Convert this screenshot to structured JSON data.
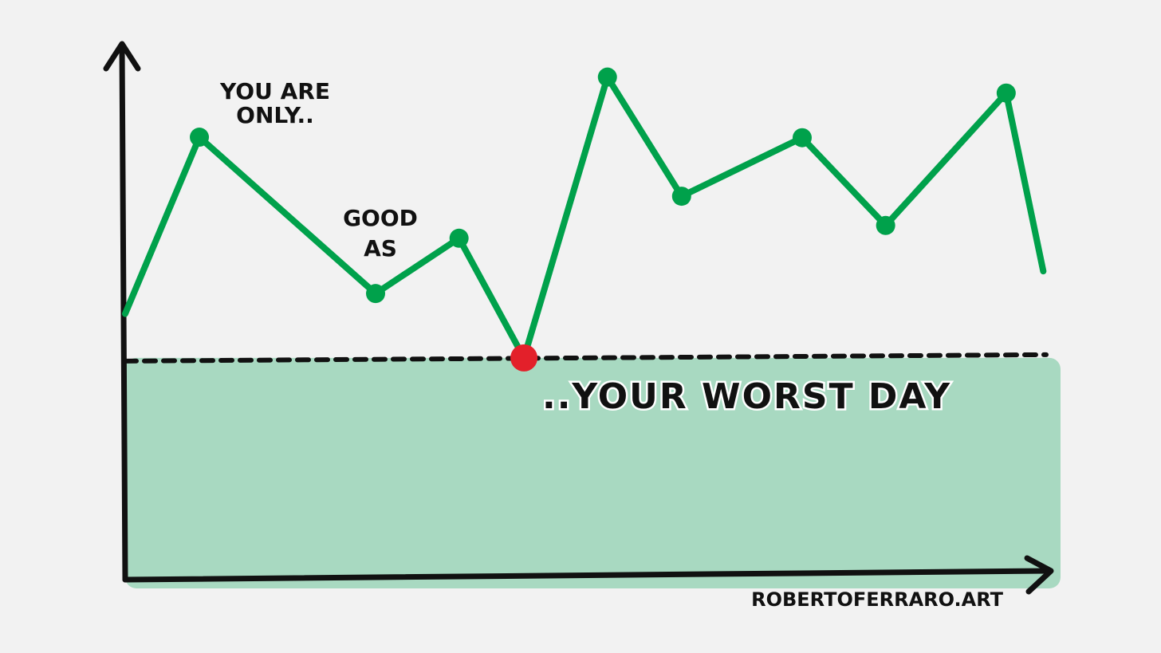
{
  "chart_data": {
    "type": "line",
    "annotations": [
      [
        "YOU ARE",
        "ONLY.."
      ],
      [
        "GOOD",
        "AS"
      ],
      [
        "..YOUR WORST DAY"
      ]
    ],
    "credit": "ROBERTOFERRARO.ART",
    "x": [
      0,
      8,
      27,
      36,
      43,
      52,
      60,
      73,
      82,
      95,
      99
    ],
    "values": [
      50,
      83.2,
      53.8,
      64.2,
      41.7,
      94.5,
      72.1,
      83.1,
      66.6,
      91.5,
      58
    ],
    "color": "#00a14b",
    "highlight_color": "#e3202a",
    "fill_color": "#a8d9c1",
    "xlim": [
      0,
      100
    ],
    "ylim": [
      0,
      100
    ]
  }
}
